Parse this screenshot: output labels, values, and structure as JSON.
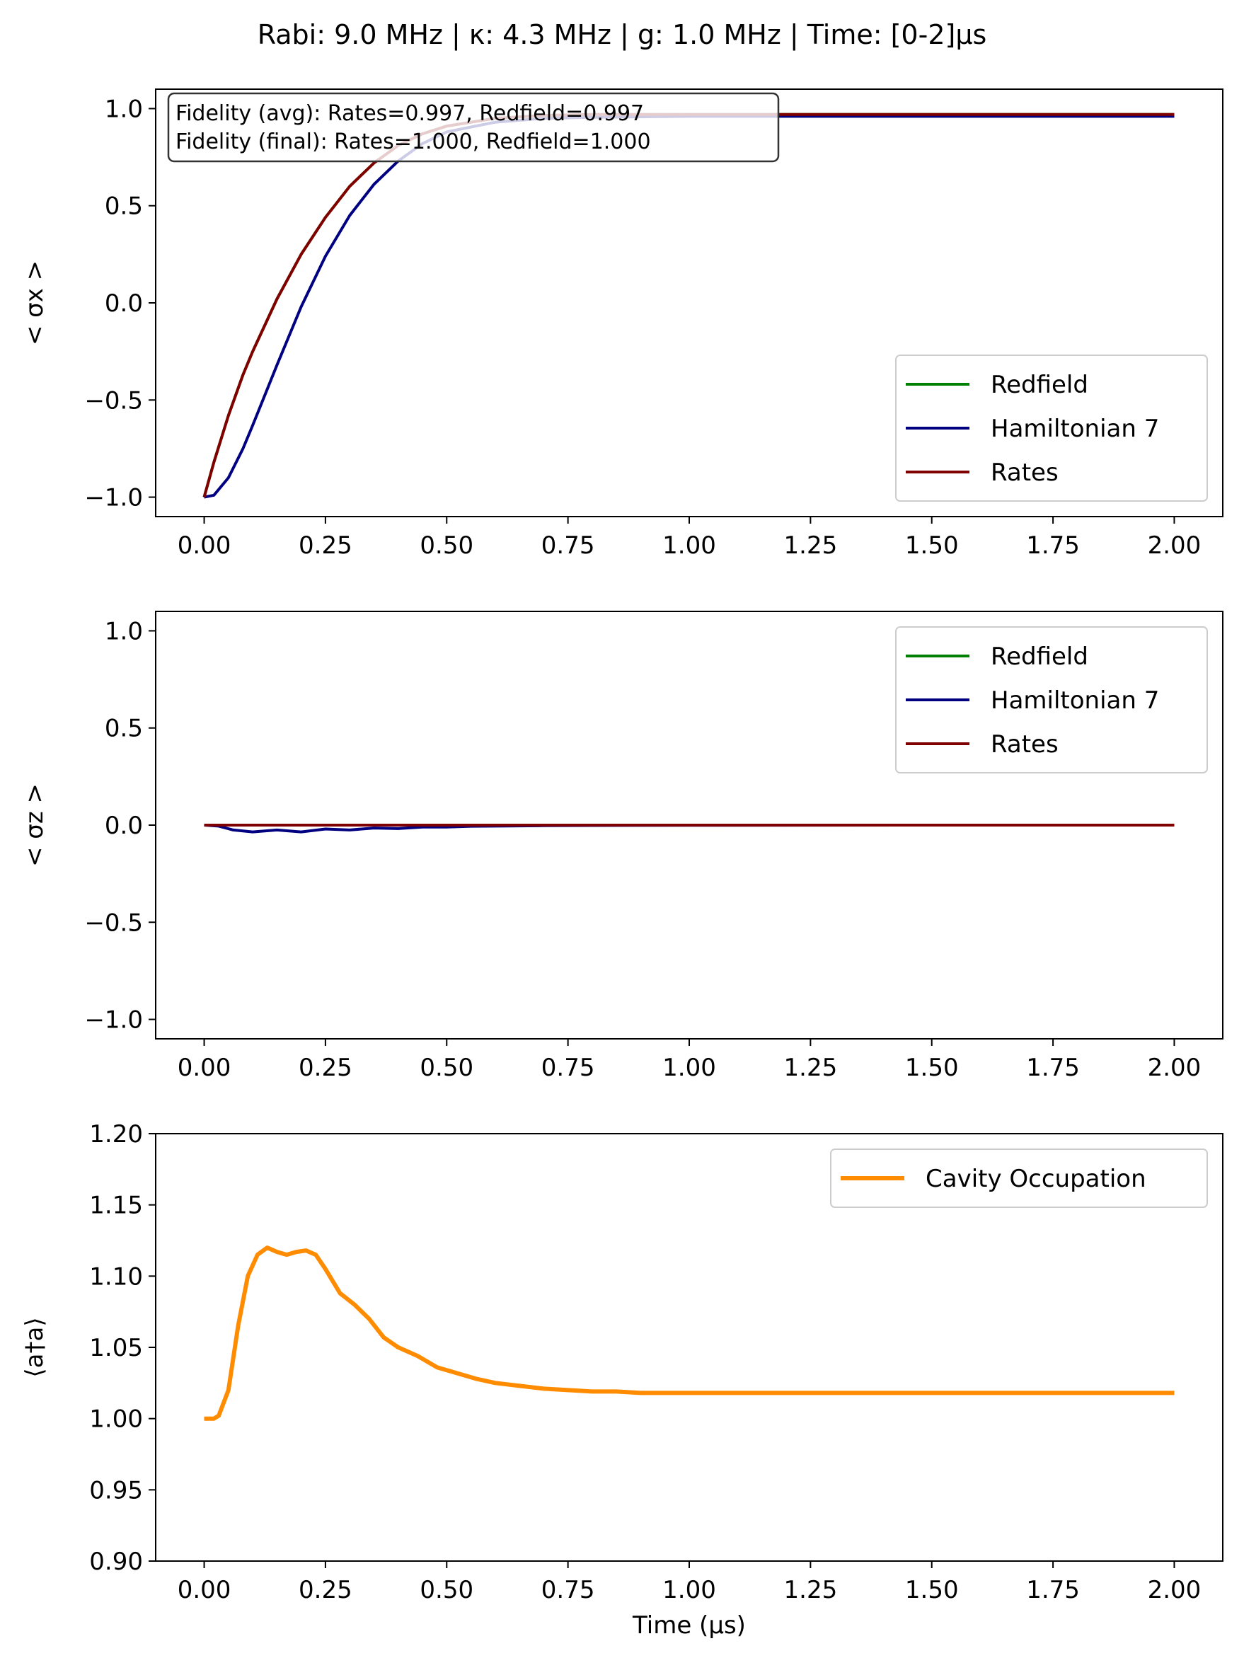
{
  "figure_title": "Rabi: 9.0 MHz | κ: 4.3 MHz | g: 1.0 MHz | Time: [0-2]μs",
  "colors": {
    "redfield": "#008000",
    "hamiltonian": "#000080",
    "rates": "#800000",
    "cavity": "#ff8c00"
  },
  "chart_data": [
    {
      "type": "line",
      "ylabel": "< σx >",
      "xlim": [
        -0.1,
        2.1
      ],
      "ylim": [
        -1.1,
        1.1
      ],
      "xticks": [
        "0.00",
        "0.25",
        "0.50",
        "0.75",
        "1.00",
        "1.25",
        "1.50",
        "1.75",
        "2.00"
      ],
      "yticks": [
        "−1.0",
        "−0.5",
        "0.0",
        "0.5",
        "1.0"
      ],
      "legend_position": "lower-right",
      "annotation": [
        "Fidelity (avg): Rates=0.997, Redfield=0.997",
        "Fidelity (final): Rates=1.000, Redfield=1.000"
      ],
      "series": [
        {
          "name": "Redfield",
          "color": "#008000",
          "x": [
            0,
            0.02,
            0.05,
            0.08,
            0.1,
            0.15,
            0.2,
            0.25,
            0.3,
            0.35,
            0.4,
            0.45,
            0.5,
            0.6,
            0.7,
            0.8,
            1.0,
            1.25,
            1.5,
            1.75,
            2.0
          ],
          "y": [
            -1.0,
            -0.82,
            -0.58,
            -0.37,
            -0.25,
            0.02,
            0.25,
            0.44,
            0.6,
            0.72,
            0.81,
            0.87,
            0.91,
            0.95,
            0.965,
            0.97,
            0.97,
            0.97,
            0.97,
            0.97,
            0.97
          ]
        },
        {
          "name": "Hamiltonian 7",
          "color": "#000080",
          "x": [
            0,
            0.02,
            0.05,
            0.08,
            0.1,
            0.15,
            0.2,
            0.25,
            0.3,
            0.35,
            0.4,
            0.45,
            0.5,
            0.6,
            0.7,
            0.8,
            1.0,
            1.25,
            1.5,
            1.75,
            2.0
          ],
          "y": [
            -1.0,
            -0.99,
            -0.9,
            -0.75,
            -0.63,
            -0.32,
            -0.02,
            0.24,
            0.45,
            0.61,
            0.73,
            0.82,
            0.88,
            0.93,
            0.95,
            0.955,
            0.96,
            0.96,
            0.96,
            0.96,
            0.96
          ]
        },
        {
          "name": "Rates",
          "color": "#800000",
          "x": [
            0,
            0.02,
            0.05,
            0.08,
            0.1,
            0.15,
            0.2,
            0.25,
            0.3,
            0.35,
            0.4,
            0.45,
            0.5,
            0.6,
            0.7,
            0.8,
            1.0,
            1.25,
            1.5,
            1.75,
            2.0
          ],
          "y": [
            -1.0,
            -0.82,
            -0.58,
            -0.37,
            -0.25,
            0.02,
            0.25,
            0.44,
            0.6,
            0.72,
            0.81,
            0.87,
            0.91,
            0.95,
            0.965,
            0.97,
            0.97,
            0.97,
            0.97,
            0.97,
            0.97
          ]
        }
      ]
    },
    {
      "type": "line",
      "ylabel": "< σz >",
      "xlim": [
        -0.1,
        2.1
      ],
      "ylim": [
        -1.1,
        1.1
      ],
      "xticks": [
        "0.00",
        "0.25",
        "0.50",
        "0.75",
        "1.00",
        "1.25",
        "1.50",
        "1.75",
        "2.00"
      ],
      "yticks": [
        "−1.0",
        "−0.5",
        "0.0",
        "0.5",
        "1.0"
      ],
      "legend_position": "upper-right",
      "series": [
        {
          "name": "Redfield",
          "color": "#008000",
          "x": [
            0,
            2.0
          ],
          "y": [
            0,
            0
          ]
        },
        {
          "name": "Hamiltonian 7",
          "color": "#000080",
          "x": [
            0,
            0.03,
            0.06,
            0.1,
            0.15,
            0.2,
            0.25,
            0.3,
            0.35,
            0.4,
            0.45,
            0.5,
            0.55,
            0.6,
            0.7,
            0.8,
            1.0,
            1.5,
            2.0
          ],
          "y": [
            0,
            -0.005,
            -0.025,
            -0.035,
            -0.025,
            -0.035,
            -0.02,
            -0.025,
            -0.015,
            -0.018,
            -0.01,
            -0.01,
            -0.006,
            -0.005,
            -0.003,
            -0.002,
            -0.001,
            0,
            0
          ]
        },
        {
          "name": "Rates",
          "color": "#800000",
          "x": [
            0,
            2.0
          ],
          "y": [
            0,
            0
          ]
        }
      ]
    },
    {
      "type": "line",
      "ylabel": "⟨a†a⟩",
      "xlabel": "Time (μs)",
      "xlim": [
        -0.1,
        2.1
      ],
      "ylim": [
        0.9,
        1.2
      ],
      "xticks": [
        "0.00",
        "0.25",
        "0.50",
        "0.75",
        "1.00",
        "1.25",
        "1.50",
        "1.75",
        "2.00"
      ],
      "yticks": [
        "0.90",
        "0.95",
        "1.00",
        "1.05",
        "1.10",
        "1.15",
        "1.20"
      ],
      "legend_position": "upper-right",
      "series": [
        {
          "name": "Cavity Occupation",
          "color": "#ff8c00",
          "x": [
            0,
            0.02,
            0.03,
            0.05,
            0.07,
            0.09,
            0.11,
            0.13,
            0.15,
            0.17,
            0.19,
            0.21,
            0.23,
            0.25,
            0.28,
            0.31,
            0.34,
            0.37,
            0.4,
            0.44,
            0.48,
            0.52,
            0.56,
            0.6,
            0.65,
            0.7,
            0.75,
            0.8,
            0.85,
            0.9,
            1.0,
            1.25,
            1.5,
            1.75,
            2.0
          ],
          "y": [
            1.0,
            1.0,
            1.002,
            1.02,
            1.065,
            1.1,
            1.115,
            1.12,
            1.117,
            1.115,
            1.117,
            1.118,
            1.115,
            1.105,
            1.088,
            1.08,
            1.07,
            1.057,
            1.05,
            1.044,
            1.036,
            1.032,
            1.028,
            1.025,
            1.023,
            1.021,
            1.02,
            1.019,
            1.019,
            1.018,
            1.018,
            1.018,
            1.018,
            1.018,
            1.018
          ]
        }
      ]
    }
  ]
}
